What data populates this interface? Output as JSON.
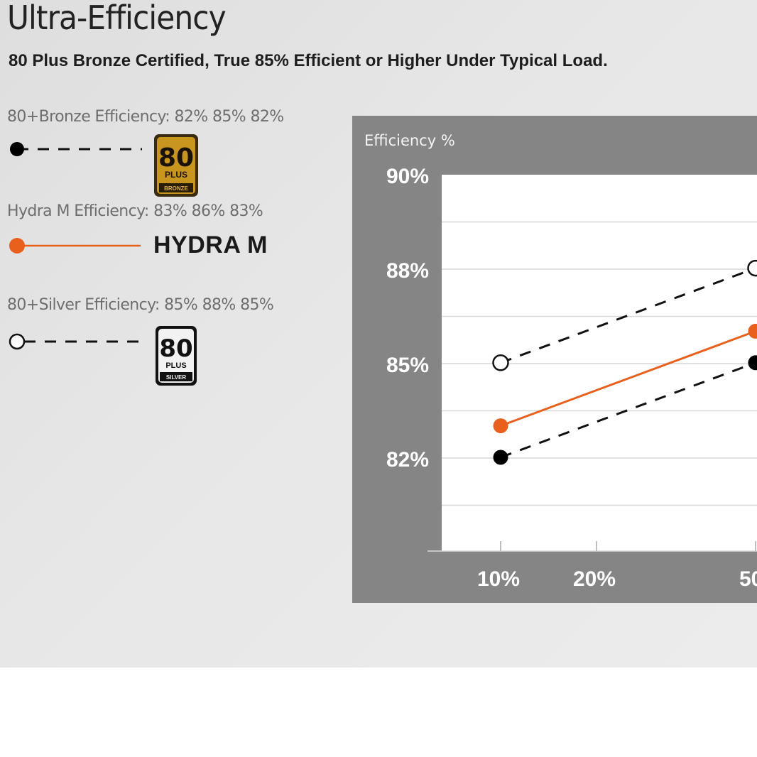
{
  "header": {
    "title": "Ultra-Efficiency",
    "subtitle": "80 Plus Bronze Certified, True 85% Efficient or Higher Under Typical Load."
  },
  "legend": {
    "bronze": {
      "label": "80+Bronze Efficiency: 82% 85% 82%",
      "badge_number": "80",
      "badge_plus": "PLUS",
      "badge_tier": "BRONZE",
      "marker": "filled-black-circle",
      "line": "dashed"
    },
    "hydra": {
      "label": "Hydra M Efficiency:  83% 86% 83%",
      "brand": "HYDRA M",
      "marker": "filled-orange-circle",
      "line": "solid"
    },
    "silver": {
      "label": "80+Silver Efficiency: 85% 88% 85%",
      "badge_number": "80",
      "badge_plus": "PLUS",
      "badge_tier": "SILVER",
      "marker": "open-circle",
      "line": "dashed"
    }
  },
  "colors": {
    "hydra": "#e8601c",
    "bronze_marker": "#000000",
    "silver_marker": "#ffffff",
    "chart_frame": "#858585",
    "badge_bronze": "#c8961e"
  },
  "chart_data": {
    "type": "line",
    "ylabel": "Efficiency %",
    "y_tick_labels": [
      "90%",
      "88%",
      "85%",
      "82%"
    ],
    "x_tick_labels": [
      "10%",
      "20%",
      "50"
    ],
    "x": [
      10,
      50
    ],
    "series": [
      {
        "name": "80+Bronze",
        "values": [
          82,
          85
        ]
      },
      {
        "name": "Hydra M",
        "values": [
          83,
          86
        ]
      },
      {
        "name": "80+Silver",
        "values": [
          85,
          88
        ]
      }
    ],
    "grid": true
  }
}
